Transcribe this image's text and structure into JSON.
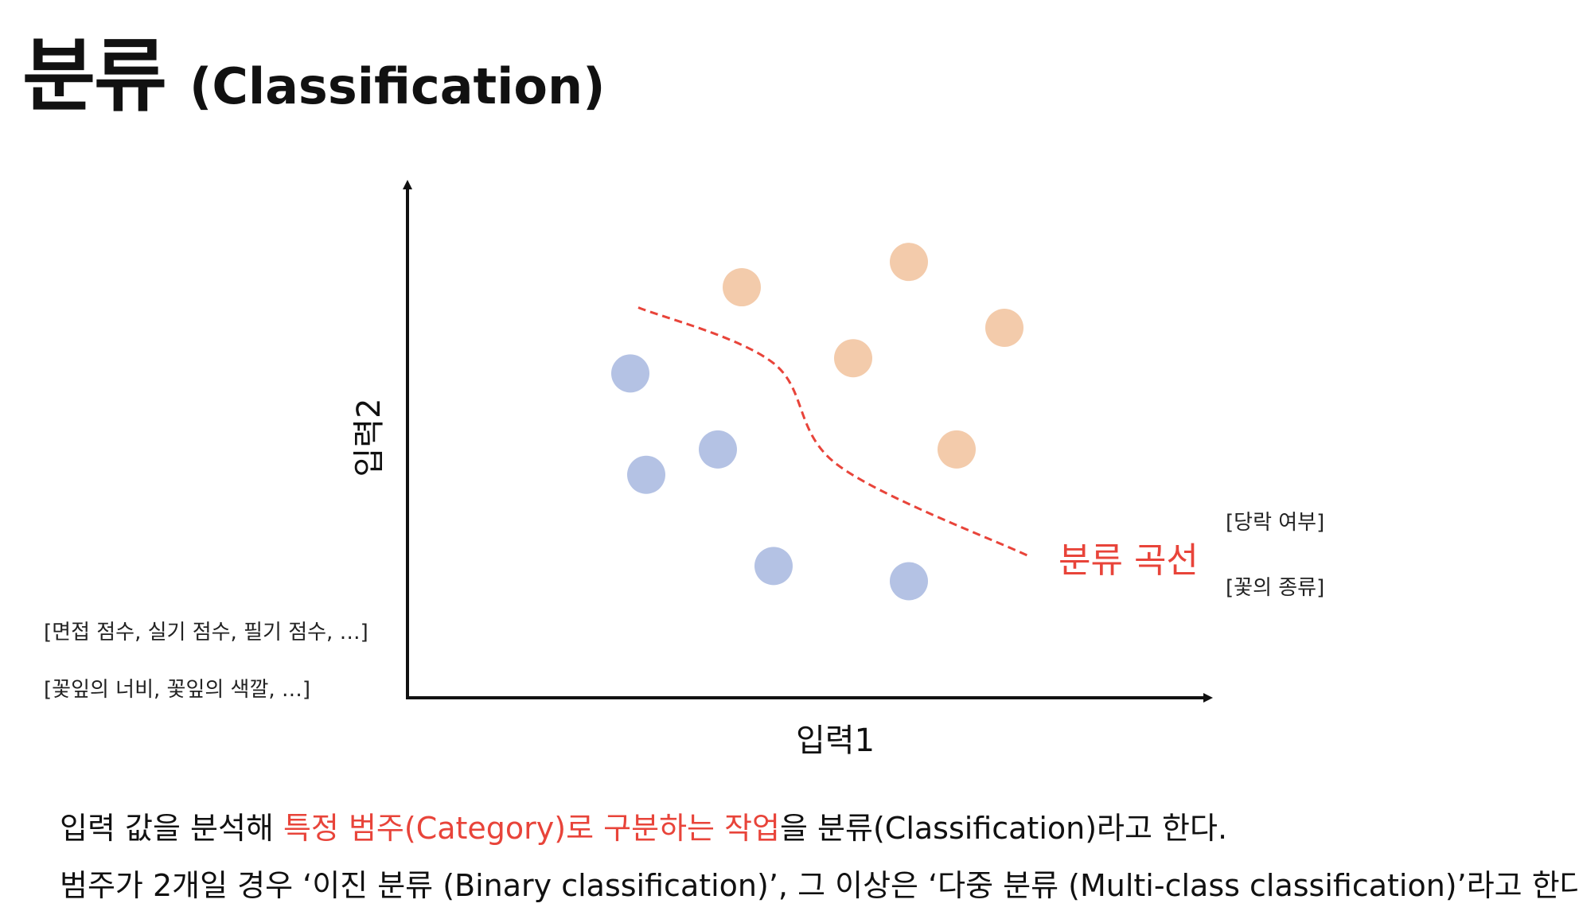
{
  "title": {
    "korean": "분류",
    "english": "(Classification)"
  },
  "diagram": {
    "x_axis_label": "입력1",
    "y_axis_label": "입력2",
    "curve_label": "분류 곡선",
    "input_examples": [
      "[면접 점수, 실기 점수, 필기 점수, …]",
      "[꽃잎의 너비, 꽃잎의 색깔, …]"
    ],
    "output_examples": [
      "[당락 여부]",
      "[꽃의 종류]"
    ],
    "colors": {
      "class_a": "#b4c2e4",
      "class_b": "#f3cbab",
      "curve": "#e8443a",
      "axis": "#111111"
    }
  },
  "chart_data": {
    "type": "scatter",
    "xlabel": "입력1",
    "ylabel": "입력2",
    "xlim": [
      0,
      100
    ],
    "ylim": [
      0,
      100
    ],
    "series": [
      {
        "color": "#b4c2e4",
        "points": [
          [
            28,
            64
          ],
          [
            30,
            44
          ],
          [
            39,
            49
          ],
          [
            46,
            26
          ],
          [
            63,
            23
          ]
        ]
      },
      {
        "color": "#f3cbab",
        "points": [
          [
            42,
            81
          ],
          [
            63,
            86
          ],
          [
            56,
            67
          ],
          [
            69,
            49
          ],
          [
            75,
            73
          ]
        ]
      }
    ],
    "boundary": [
      [
        29,
        77
      ],
      [
        46,
        66
      ],
      [
        54,
        46
      ],
      [
        78,
        28
      ]
    ]
  },
  "description": {
    "line1": {
      "part1": "입력 값을 분석해 ",
      "highlight": "특정 범주(Category)로 구분하는 작업",
      "part2": "을 분류(Classification)라고 한다."
    },
    "line2": "범주가 2개일 경우 ‘이진 분류 (Binary classification)’, 그 이상은 ‘다중 분류 (Multi-class classification)’라고 한다."
  }
}
